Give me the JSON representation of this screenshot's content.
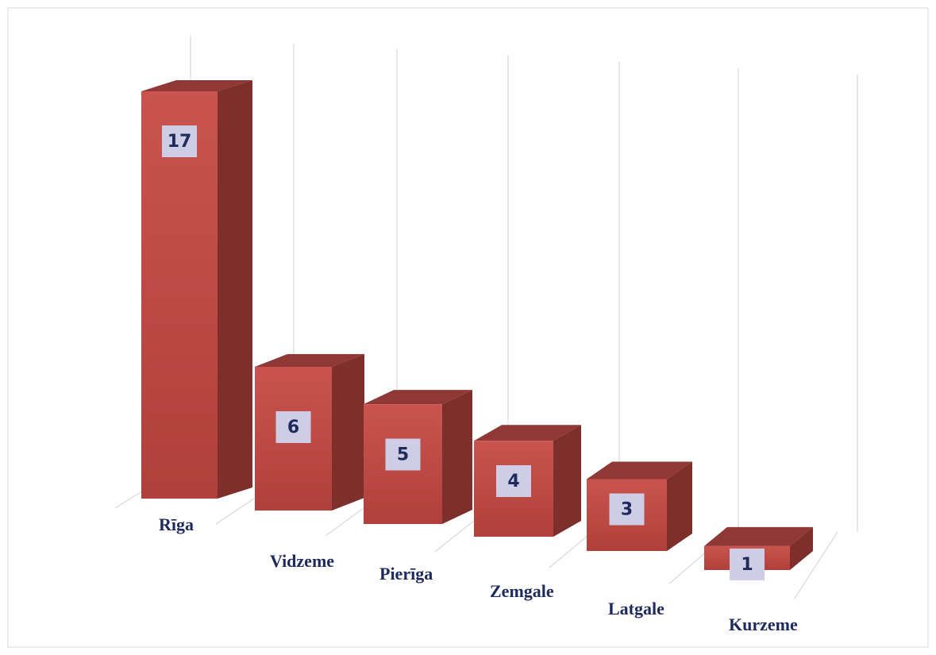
{
  "chart_data": {
    "type": "bar3d",
    "categories": [
      "Rīga",
      "Vidzeme",
      "Pierīga",
      "Zemgale",
      "Latgale",
      "Kurzeme"
    ],
    "values": [
      17,
      6,
      5,
      4,
      3,
      1
    ],
    "color": "#c0504d"
  }
}
